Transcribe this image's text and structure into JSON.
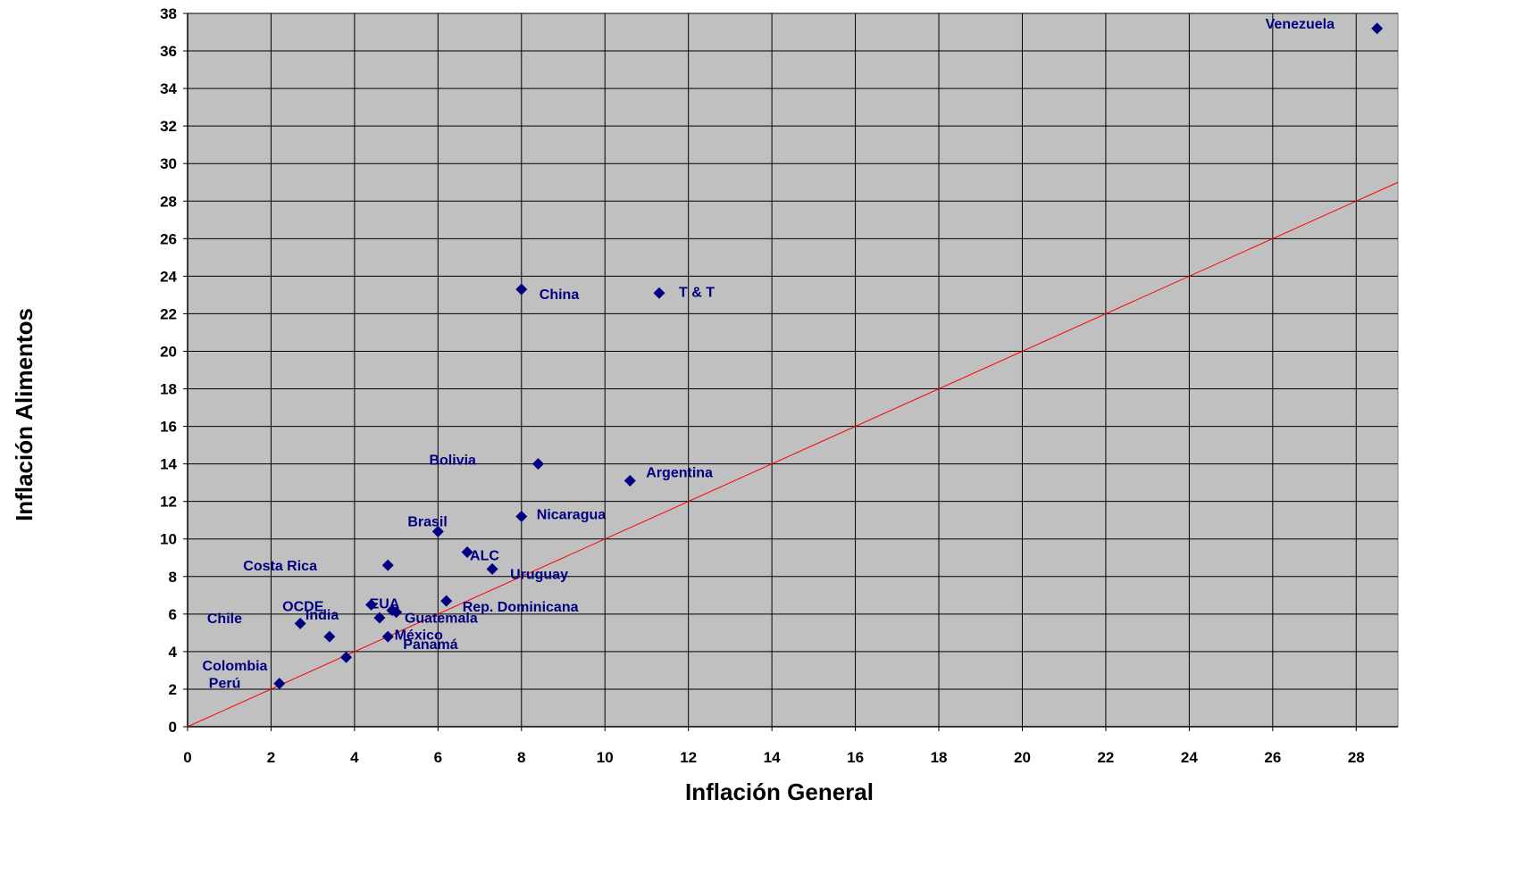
{
  "chart_data": {
    "type": "scatter",
    "xlabel": "Inflación General",
    "ylabel": "Inflación Alimentos",
    "xlim": [
      0,
      29
    ],
    "ylim": [
      0,
      38
    ],
    "x_ticks": [
      0,
      2,
      4,
      6,
      8,
      10,
      12,
      14,
      16,
      18,
      20,
      22,
      24,
      26,
      28
    ],
    "y_ticks": [
      0,
      2,
      4,
      6,
      8,
      10,
      12,
      14,
      16,
      18,
      20,
      22,
      24,
      26,
      28,
      30,
      32,
      34,
      36,
      38
    ],
    "grid": true,
    "legend": "none",
    "colors": {
      "plot_background": "#c0c0c0",
      "marker": "#000080",
      "reference_line": "#ff0000",
      "grid": "#000000"
    },
    "reference_line": {
      "from": [
        0,
        0
      ],
      "to": [
        29,
        29
      ]
    },
    "points": [
      {
        "label": "Venezuela",
        "x": 28.5,
        "y": 37.2
      },
      {
        "label": "China",
        "x": 8.0,
        "y": 23.3
      },
      {
        "label": "T & T",
        "x": 11.3,
        "y": 23.1
      },
      {
        "label": "Bolivia",
        "x": 8.4,
        "y": 14.0
      },
      {
        "label": "Argentina",
        "x": 10.6,
        "y": 13.1
      },
      {
        "label": "Nicaragua",
        "x": 8.0,
        "y": 11.2
      },
      {
        "label": "Brasil",
        "x": 6.0,
        "y": 10.4
      },
      {
        "label": "ALC",
        "x": 6.7,
        "y": 9.3
      },
      {
        "label": "Costa Rica",
        "x": 4.8,
        "y": 8.6
      },
      {
        "label": "Uruguay",
        "x": 7.3,
        "y": 8.4
      },
      {
        "label": "Rep. Dominicana",
        "x": 6.2,
        "y": 6.7
      },
      {
        "label": "EUA",
        "x": 4.4,
        "y": 6.5
      },
      {
        "label": "OCDE",
        "x": 2.7,
        "y": 5.5
      },
      {
        "label": "Guatemala",
        "x": 4.9,
        "y": 6.2
      },
      {
        "label": "India",
        "x": 4.6,
        "y": 5.8
      },
      {
        "label": "Chile",
        "x": 3.4,
        "y": 4.8
      },
      {
        "label": "Panamá",
        "x": 4.8,
        "y": 4.8
      },
      {
        "label": "Colombia",
        "x": 3.8,
        "y": 3.7
      },
      {
        "label": "México",
        "x": 5.0,
        "y": 6.1
      },
      {
        "label": "Perú",
        "x": 2.2,
        "y": 2.3
      }
    ]
  }
}
